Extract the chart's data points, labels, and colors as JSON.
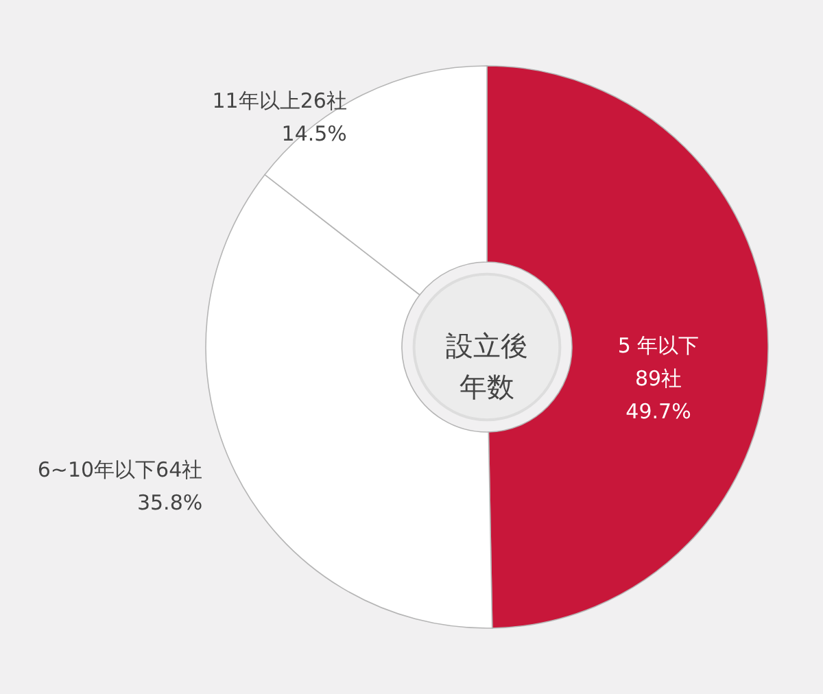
{
  "chart_data": {
    "type": "donut",
    "categories": [
      "5 年以下\n89社",
      "6~10年以下64社",
      "11年以上26社"
    ],
    "values": [
      49.7,
      35.8,
      14.5
    ],
    "value_labels": [
      "49.7%",
      "35.8%",
      "14.5%"
    ],
    "colors": [
      "#c8173a",
      "#ffffff",
      "#ffffff"
    ],
    "annotations": [
      "設立後年数"
    ]
  }
}
